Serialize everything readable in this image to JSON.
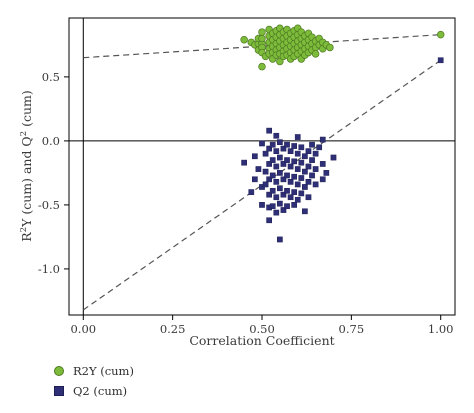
{
  "chart_data": {
    "type": "scatter",
    "title": "",
    "xlabel": "Correlation Coefficient",
    "ylabel": "R2Y (cum) and Q2 (cum)",
    "xlim": [
      -0.04,
      1.04
    ],
    "ylim": [
      -1.36,
      0.96
    ],
    "x_ticks": [
      "0.00",
      "0.25",
      "0.50",
      "0.75",
      "1.00"
    ],
    "y_ticks": [
      "0.5",
      "0.0",
      "-0.5",
      "-1.0"
    ],
    "grid": false,
    "legend_position": "bottom-left",
    "series": [
      {
        "name": "R2Y (cum)",
        "marker": "circle",
        "color": "#7dbb3a",
        "edge_color": "#4e7a22",
        "points": [
          [
            0.45,
            0.79
          ],
          [
            0.47,
            0.77
          ],
          [
            0.48,
            0.75
          ],
          [
            0.49,
            0.76
          ],
          [
            0.49,
            0.8
          ],
          [
            0.49,
            0.71
          ],
          [
            0.5,
            0.76
          ],
          [
            0.5,
            0.8
          ],
          [
            0.5,
            0.85
          ],
          [
            0.5,
            0.73
          ],
          [
            0.5,
            0.69
          ],
          [
            0.5,
            0.58
          ],
          [
            0.51,
            0.66
          ],
          [
            0.52,
            0.77
          ],
          [
            0.52,
            0.82
          ],
          [
            0.52,
            0.87
          ],
          [
            0.52,
            0.72
          ],
          [
            0.52,
            0.68
          ],
          [
            0.53,
            0.74
          ],
          [
            0.53,
            0.79
          ],
          [
            0.53,
            0.84
          ],
          [
            0.53,
            0.69
          ],
          [
            0.53,
            0.64
          ],
          [
            0.54,
            0.76
          ],
          [
            0.54,
            0.81
          ],
          [
            0.54,
            0.86
          ],
          [
            0.54,
            0.71
          ],
          [
            0.54,
            0.67
          ],
          [
            0.55,
            0.78
          ],
          [
            0.55,
            0.83
          ],
          [
            0.55,
            0.88
          ],
          [
            0.55,
            0.73
          ],
          [
            0.55,
            0.68
          ],
          [
            0.55,
            0.62
          ],
          [
            0.56,
            0.75
          ],
          [
            0.56,
            0.8
          ],
          [
            0.56,
            0.85
          ],
          [
            0.56,
            0.7
          ],
          [
            0.56,
            0.66
          ],
          [
            0.57,
            0.77
          ],
          [
            0.57,
            0.82
          ],
          [
            0.57,
            0.87
          ],
          [
            0.57,
            0.72
          ],
          [
            0.57,
            0.67
          ],
          [
            0.58,
            0.74
          ],
          [
            0.58,
            0.79
          ],
          [
            0.58,
            0.84
          ],
          [
            0.58,
            0.69
          ],
          [
            0.58,
            0.64
          ],
          [
            0.59,
            0.76
          ],
          [
            0.59,
            0.81
          ],
          [
            0.59,
            0.86
          ],
          [
            0.59,
            0.71
          ],
          [
            0.59,
            0.66
          ],
          [
            0.6,
            0.78
          ],
          [
            0.6,
            0.83
          ],
          [
            0.6,
            0.88
          ],
          [
            0.6,
            0.73
          ],
          [
            0.6,
            0.68
          ],
          [
            0.61,
            0.75
          ],
          [
            0.61,
            0.8
          ],
          [
            0.61,
            0.85
          ],
          [
            0.61,
            0.7
          ],
          [
            0.61,
            0.64
          ],
          [
            0.62,
            0.77
          ],
          [
            0.62,
            0.82
          ],
          [
            0.62,
            0.72
          ],
          [
            0.62,
            0.67
          ],
          [
            0.63,
            0.74
          ],
          [
            0.63,
            0.79
          ],
          [
            0.63,
            0.84
          ],
          [
            0.63,
            0.69
          ],
          [
            0.64,
            0.76
          ],
          [
            0.64,
            0.81
          ],
          [
            0.64,
            0.71
          ],
          [
            0.65,
            0.78
          ],
          [
            0.65,
            0.73
          ],
          [
            0.65,
            0.68
          ],
          [
            0.66,
            0.75
          ],
          [
            0.66,
            0.8
          ],
          [
            0.67,
            0.77
          ],
          [
            0.67,
            0.72
          ],
          [
            0.68,
            0.75
          ],
          [
            0.69,
            0.73
          ],
          [
            1.0,
            0.83
          ]
        ],
        "regression": {
          "x": [
            0.0,
            1.0
          ],
          "y": [
            0.65,
            0.83
          ]
        }
      },
      {
        "name": "Q2 (cum)",
        "marker": "square",
        "color": "#2e2f76",
        "edge_color": "#1e1f55",
        "points": [
          [
            0.45,
            -0.17
          ],
          [
            0.47,
            -0.4
          ],
          [
            0.48,
            -0.3
          ],
          [
            0.48,
            -0.12
          ],
          [
            0.49,
            -0.22
          ],
          [
            0.5,
            -0.02
          ],
          [
            0.5,
            -0.36
          ],
          [
            0.5,
            -0.5
          ],
          [
            0.51,
            -0.24
          ],
          [
            0.51,
            -0.1
          ],
          [
            0.51,
            -0.34
          ],
          [
            0.52,
            -0.06
          ],
          [
            0.52,
            -0.18
          ],
          [
            0.52,
            -0.3
          ],
          [
            0.52,
            -0.42
          ],
          [
            0.52,
            -0.52
          ],
          [
            0.52,
            0.08
          ],
          [
            0.52,
            -0.62
          ],
          [
            0.53,
            -0.03
          ],
          [
            0.53,
            -0.15
          ],
          [
            0.53,
            -0.27
          ],
          [
            0.53,
            -0.39
          ],
          [
            0.53,
            -0.51
          ],
          [
            0.54,
            -0.08
          ],
          [
            0.54,
            -0.2
          ],
          [
            0.54,
            -0.32
          ],
          [
            0.54,
            -0.44
          ],
          [
            0.54,
            -0.56
          ],
          [
            0.54,
            0.04
          ],
          [
            0.55,
            -0.01
          ],
          [
            0.55,
            -0.13
          ],
          [
            0.55,
            -0.25
          ],
          [
            0.55,
            -0.37
          ],
          [
            0.55,
            -0.49
          ],
          [
            0.55,
            -0.77
          ],
          [
            0.56,
            -0.06
          ],
          [
            0.56,
            -0.18
          ],
          [
            0.56,
            -0.3
          ],
          [
            0.56,
            -0.42
          ],
          [
            0.56,
            -0.54
          ],
          [
            0.57,
            -0.03
          ],
          [
            0.57,
            -0.15
          ],
          [
            0.57,
            -0.27
          ],
          [
            0.57,
            -0.39
          ],
          [
            0.57,
            -0.51
          ],
          [
            0.58,
            -0.08
          ],
          [
            0.58,
            -0.2
          ],
          [
            0.58,
            -0.32
          ],
          [
            0.58,
            -0.44
          ],
          [
            0.59,
            -0.04
          ],
          [
            0.59,
            -0.16
          ],
          [
            0.59,
            -0.28
          ],
          [
            0.59,
            -0.4
          ],
          [
            0.59,
            -0.5
          ],
          [
            0.6,
            -0.1
          ],
          [
            0.6,
            -0.22
          ],
          [
            0.6,
            -0.34
          ],
          [
            0.6,
            -0.46
          ],
          [
            0.6,
            0.03
          ],
          [
            0.61,
            -0.05
          ],
          [
            0.61,
            -0.17
          ],
          [
            0.61,
            -0.29
          ],
          [
            0.61,
            -0.41
          ],
          [
            0.62,
            -0.12
          ],
          [
            0.62,
            -0.24
          ],
          [
            0.62,
            -0.36
          ],
          [
            0.62,
            -0.55
          ],
          [
            0.63,
            -0.08
          ],
          [
            0.63,
            -0.2
          ],
          [
            0.63,
            -0.32
          ],
          [
            0.63,
            -0.44
          ],
          [
            0.64,
            -0.03
          ],
          [
            0.64,
            -0.15
          ],
          [
            0.64,
            -0.27
          ],
          [
            0.65,
            -0.1
          ],
          [
            0.65,
            -0.22
          ],
          [
            0.65,
            -0.34
          ],
          [
            0.66,
            -0.05
          ],
          [
            0.67,
            -0.18
          ],
          [
            0.67,
            -0.3
          ],
          [
            0.67,
            0.01
          ],
          [
            0.68,
            -0.25
          ],
          [
            0.7,
            -0.13
          ],
          [
            1.0,
            0.63
          ]
        ],
        "regression": {
          "x": [
            0.0,
            1.0
          ],
          "y": [
            -1.32,
            0.63
          ]
        }
      }
    ]
  },
  "legend": {
    "items": [
      {
        "label": "R2Y (cum)",
        "marker": "circle-green-icon"
      },
      {
        "label": "Q2 (cum)",
        "marker": "square-navy-icon"
      }
    ]
  }
}
